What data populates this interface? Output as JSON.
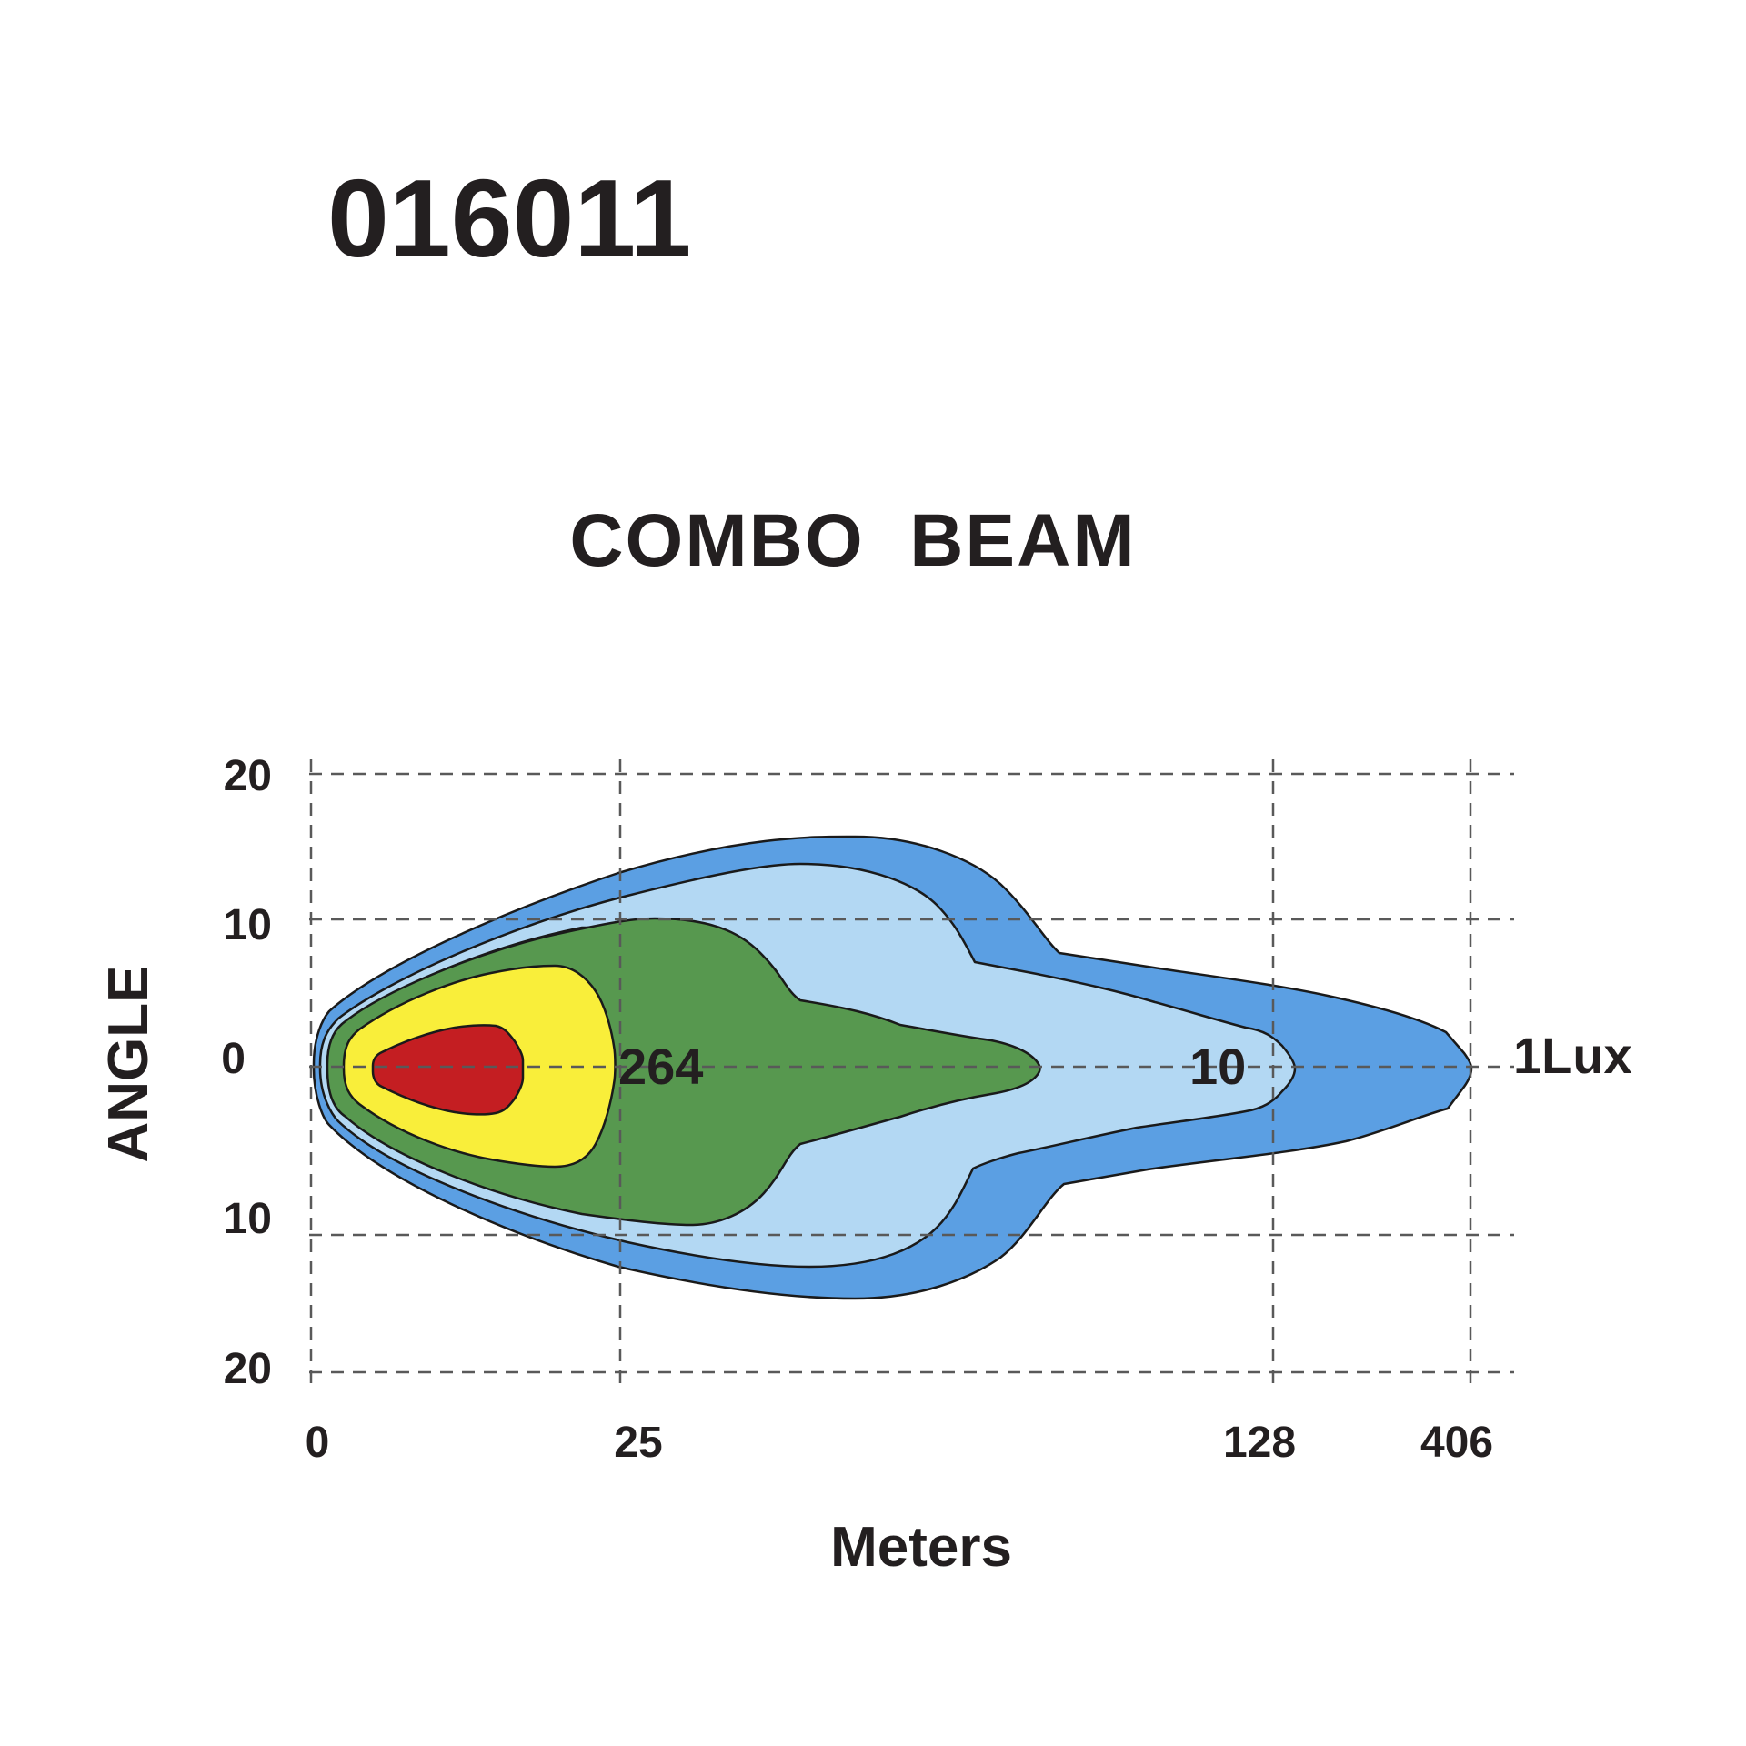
{
  "model_number": "016011",
  "chart_data": {
    "type": "isolux",
    "title": "COMBO  BEAM",
    "xlabel": "Meters",
    "ylabel": "ANGLE",
    "x_ticks": [
      "0",
      "25",
      "128",
      "406"
    ],
    "y_ticks": [
      "20",
      "10",
      "0",
      "10",
      "20"
    ],
    "grid": true,
    "contour_labels": [
      {
        "text": "264",
        "lux": 264,
        "distance_m": 25
      },
      {
        "text": "10",
        "lux": 10,
        "distance_m": 128
      },
      {
        "text": "1Lux",
        "lux": 1,
        "distance_m": 406
      }
    ],
    "bands": [
      {
        "name": "outer-1lux",
        "color": "#5b9fe3"
      },
      {
        "name": "10lux",
        "color": "#b3d8f3"
      },
      {
        "name": "tan-fringe",
        "color": "#e6e07a"
      },
      {
        "name": "mid",
        "color": "#57984f"
      },
      {
        "name": "264lux",
        "color": "#f9ee3a"
      },
      {
        "name": "core",
        "color": "#c41e22"
      }
    ]
  }
}
